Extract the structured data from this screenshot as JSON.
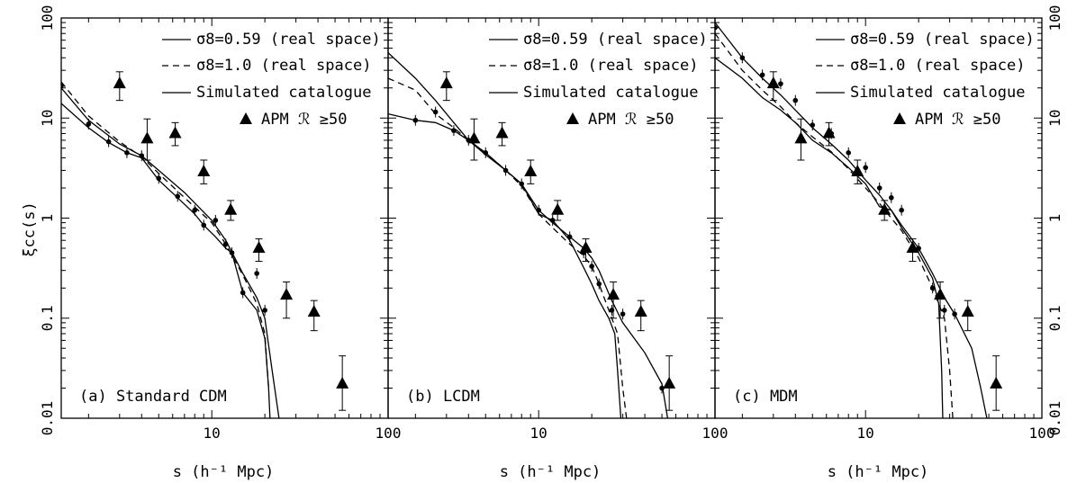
{
  "figure": {
    "ylabel": "ξcc(s)",
    "xlabel": "s (h⁻¹ Mpc)"
  },
  "chart_data": {
    "type": "scatter",
    "xscale": "log",
    "yscale": "log",
    "xlim": [
      1.4,
      100
    ],
    "ylim": [
      0.01,
      100
    ],
    "x_tick_labels": [
      "10",
      "100"
    ],
    "y_tick_labels": [
      "0.01",
      "0.1",
      "1",
      "10",
      "100"
    ],
    "legend_position": "top-right",
    "legend": [
      {
        "label": "σ8=0.59 (real space)",
        "style": "solid"
      },
      {
        "label": "σ8=1.0  (real space)",
        "style": "dashed"
      },
      {
        "label": "Simulated catalogue",
        "style": "solid-points"
      },
      {
        "label": "APM ℛ ≥50",
        "style": "triangle"
      }
    ],
    "apm": {
      "name": "APM ℛ ≥50",
      "x": [
        3.0,
        4.3,
        6.2,
        9.0,
        12.8,
        18.5,
        26.5,
        38.0,
        55.0
      ],
      "y": [
        22,
        6.2,
        7.0,
        2.9,
        1.2,
        0.5,
        0.17,
        0.115,
        0.022
      ],
      "err_low": [
        15,
        3.8,
        5.3,
        2.2,
        0.95,
        0.37,
        0.1,
        0.075,
        0.012
      ],
      "err_high": [
        29,
        9.8,
        9.0,
        3.8,
        1.5,
        0.62,
        0.23,
        0.15,
        0.042
      ]
    },
    "panels": [
      {
        "label": "(a) Standard CDM",
        "series": [
          {
            "name": "σ8=0.59 (real space)",
            "style": "solid",
            "x": [
              1.4,
              2,
              3,
              4,
              5,
              7,
              10,
              12,
              15,
              18,
              20,
              22,
              24.5
            ],
            "y": [
              20,
              9.5,
              5.5,
              4.2,
              3,
              1.8,
              0.95,
              0.6,
              0.28,
              0.16,
              0.1,
              0.03,
              0.008
            ]
          },
          {
            "name": "σ8=1.0  (real space)",
            "style": "dashed",
            "x": [
              1.4,
              2,
              3,
              4,
              5,
              7,
              10,
              12,
              15,
              18,
              20,
              21
            ],
            "y": [
              23,
              10.5,
              5.8,
              4.1,
              2.8,
              1.6,
              0.9,
              0.55,
              0.27,
              0.14,
              0.07,
              0.02
            ]
          },
          {
            "name": "Simulated catalogue",
            "style": "solid-points",
            "x": [
              1.4,
              2,
              2.6,
              3.3,
              4,
              5,
              6.4,
              8,
              9,
              10.5,
              12,
              13,
              15,
              18,
              20,
              21,
              21.5
            ],
            "y": [
              14,
              8,
              5.7,
              4.5,
              4,
              2.4,
              1.6,
              1.1,
              0.85,
              0.65,
              0.5,
              0.45,
              0.18,
              0.12,
              0.063,
              0.02,
              0.008
            ],
            "points_x": [
              1.4,
              2,
              2.6,
              3.3,
              4,
              5,
              6.4,
              8,
              9,
              10.5,
              12,
              13,
              15,
              18,
              20
            ],
            "points_y": [
              21,
              8.7,
              5.8,
              4.5,
              4.2,
              2.5,
              1.65,
              1.2,
              0.85,
              0.95,
              0.55,
              0.45,
              0.18,
              0.28,
              0.12
            ]
          }
        ]
      },
      {
        "label": "(b) LCDM",
        "series": [
          {
            "name": "σ8=0.59 (real space)",
            "style": "solid",
            "x": [
              1.4,
              2,
              2.6,
              3.3,
              4,
              5,
              6.5,
              8,
              10,
              12,
              15,
              18,
              20,
              22,
              26,
              30,
              40,
              50,
              55
            ],
            "y": [
              45,
              25,
              15,
              9,
              6,
              4.3,
              3,
              2.2,
              1.2,
              0.9,
              0.65,
              0.5,
              0.4,
              0.3,
              0.15,
              0.09,
              0.045,
              0.022,
              0.008
            ]
          },
          {
            "name": "σ8=1.0  (real space)",
            "style": "dashed",
            "x": [
              1.4,
              2,
              2.6,
              3.3,
              4,
              5,
              6.5,
              8,
              10,
              12,
              15,
              18,
              20,
              22,
              26,
              28,
              30,
              32
            ],
            "y": [
              25,
              19,
              11,
              8,
              6,
              4.5,
              3,
              2.1,
              1.1,
              0.8,
              0.55,
              0.42,
              0.33,
              0.22,
              0.1,
              0.07,
              0.02,
              0.008
            ]
          },
          {
            "name": "Simulated catalogue",
            "style": "solid-points",
            "x": [
              1.4,
              2,
              2.6,
              3.3,
              4,
              5,
              6.5,
              8,
              10,
              12,
              15,
              18,
              20,
              22,
              25,
              27,
              28,
              29.5
            ],
            "y": [
              11,
              9.5,
              9,
              7.5,
              6,
              4.5,
              3,
              2.2,
              1.1,
              0.95,
              0.6,
              0.32,
              0.22,
              0.15,
              0.1,
              0.07,
              0.03,
              0.008
            ],
            "points_x": [
              2,
              2.6,
              3.3,
              4,
              5,
              6.5,
              8,
              10,
              12,
              15,
              18,
              20,
              22,
              26,
              30,
              50
            ],
            "points_y": [
              9.5,
              11.5,
              7.5,
              6,
              4.5,
              3,
              2.2,
              1.2,
              0.95,
              0.65,
              0.45,
              0.33,
              0.22,
              0.12,
              0.11,
              0.02
            ]
          }
        ]
      },
      {
        "label": "(c) MDM",
        "series": [
          {
            "name": "σ8=0.59 (real space)",
            "style": "solid",
            "x": [
              1.4,
              2,
              2.6,
              3.3,
              4,
              5,
              6.4,
              8,
              10,
              12,
              14,
              16,
              20,
              24,
              28,
              32,
              40,
              45,
              50
            ],
            "y": [
              90,
              40,
              25,
              17,
              12,
              8,
              5.5,
              3.8,
              2.4,
              1.7,
              1.2,
              0.85,
              0.5,
              0.28,
              0.16,
              0.11,
              0.05,
              0.02,
              0.008
            ]
          },
          {
            "name": "σ8=1.0  (real space)",
            "style": "dashed",
            "x": [
              1.4,
              2,
              2.6,
              3.3,
              4,
              5,
              6.4,
              8,
              10,
              12,
              14,
              16,
              20,
              24,
              28,
              30,
              31.5
            ],
            "y": [
              70,
              30,
              19,
              13,
              9,
              6.5,
              4.6,
              3.1,
              2,
              1.4,
              1,
              0.75,
              0.4,
              0.2,
              0.1,
              0.03,
              0.008
            ]
          },
          {
            "name": "Simulated catalogue",
            "style": "solid-points",
            "x": [
              1.4,
              2,
              2.6,
              3.3,
              4,
              5,
              6.4,
              8,
              10,
              12,
              14,
              16,
              20,
              24,
              26,
              27,
              27.5
            ],
            "y": [
              40,
              25,
              16,
              12,
              9,
              6,
              4.5,
              3.2,
              2.2,
              1.3,
              1.2,
              0.8,
              0.45,
              0.25,
              0.14,
              0.03,
              0.008
            ],
            "points_x": [
              1.4,
              2,
              2.6,
              3.3,
              4,
              5,
              6.4,
              8,
              10,
              12,
              14,
              16,
              20,
              24,
              28,
              32
            ],
            "points_y": [
              80,
              40,
              27,
              22,
              15,
              8.5,
              7,
              4.5,
              3.2,
              2,
              1.6,
              1.2,
              0.5,
              0.2,
              0.12,
              0.11
            ]
          }
        ]
      }
    ]
  }
}
